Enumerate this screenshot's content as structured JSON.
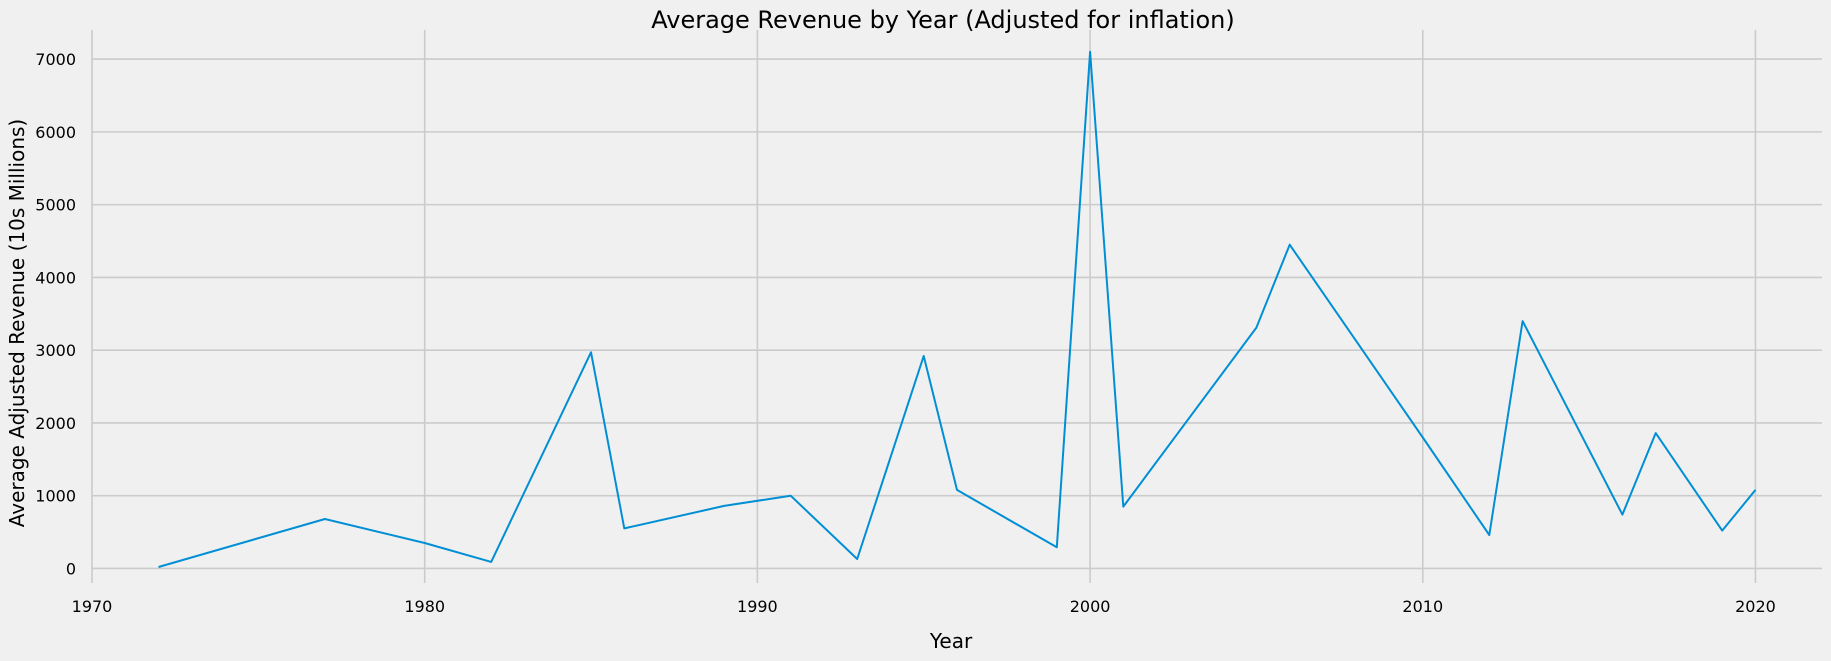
{
  "chart_data": {
    "type": "line",
    "title": "Average Revenue by Year (Adjusted for inflation)",
    "xlabel": "Year",
    "ylabel": "Average Adjusted Revenue (10s Millions)",
    "xlim": [
      1970,
      2022
    ],
    "ylim": [
      -200,
      7400
    ],
    "xticks": [
      1970,
      1980,
      1990,
      2000,
      2010,
      2020
    ],
    "yticks": [
      0,
      1000,
      2000,
      3000,
      4000,
      5000,
      6000,
      7000
    ],
    "grid": true,
    "series": [
      {
        "color": "#008fd5",
        "x": [
          1972,
          1977,
          1980,
          1982,
          1985,
          1986,
          1989,
          1991,
          1993,
          1995,
          1996,
          1999,
          2000,
          2001,
          2005,
          2006,
          2010,
          2012,
          2013,
          2016,
          2017,
          2019,
          2020
        ],
        "y": [
          20,
          680,
          350,
          90,
          2970,
          550,
          860,
          1000,
          130,
          2920,
          1080,
          290,
          7100,
          850,
          3310,
          4450,
          1800,
          460,
          3400,
          740,
          1860,
          520,
          1080
        ]
      }
    ]
  }
}
